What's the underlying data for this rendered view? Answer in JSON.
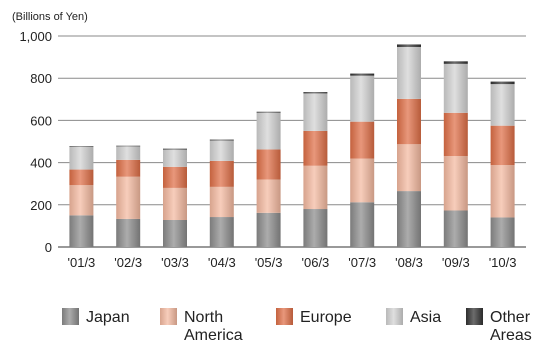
{
  "chart_data": {
    "type": "bar",
    "stacked": true,
    "unit_label": "(Billions of Yen)",
    "categories": [
      "'01/3",
      "'02/3",
      "'03/3",
      "'04/3",
      "'05/3",
      "'06/3",
      "'07/3",
      "'08/3",
      "'09/3",
      "'10/3"
    ],
    "ylim": [
      0,
      1000
    ],
    "yticks": [
      {
        "value": 0,
        "label": "0"
      },
      {
        "value": 200,
        "label": "200"
      },
      {
        "value": 400,
        "label": "400"
      },
      {
        "value": 600,
        "label": "600"
      },
      {
        "value": 800,
        "label": "800"
      },
      {
        "value": 1000,
        "label": "1,000"
      }
    ],
    "grid": true,
    "legend_position": "bottom",
    "series": [
      {
        "name": "Japan",
        "legend_lines": [
          "Japan"
        ],
        "color": "#8c8c8c",
        "values": [
          150,
          133,
          128,
          142,
          162,
          180,
          212,
          265,
          173,
          140
        ]
      },
      {
        "name": "North America",
        "legend_lines": [
          "North",
          "America"
        ],
        "color": "#f4b9a0",
        "values": [
          143,
          200,
          152,
          143,
          158,
          205,
          207,
          222,
          258,
          248
        ]
      },
      {
        "name": "Europe",
        "legend_lines": [
          "Europe"
        ],
        "color": "#df6f47",
        "values": [
          74,
          80,
          100,
          123,
          142,
          165,
          175,
          215,
          205,
          187
        ]
      },
      {
        "name": "Asia",
        "legend_lines": [
          "Asia"
        ],
        "color": "#d2d2d2",
        "values": [
          108,
          64,
          82,
          97,
          175,
          178,
          218,
          246,
          232,
          197
        ]
      },
      {
        "name": "Other Areas",
        "legend_lines": [
          "Other",
          "Areas"
        ],
        "color": "#333333",
        "values": [
          3,
          3,
          4,
          4,
          4,
          6,
          10,
          12,
          12,
          12
        ]
      }
    ]
  }
}
